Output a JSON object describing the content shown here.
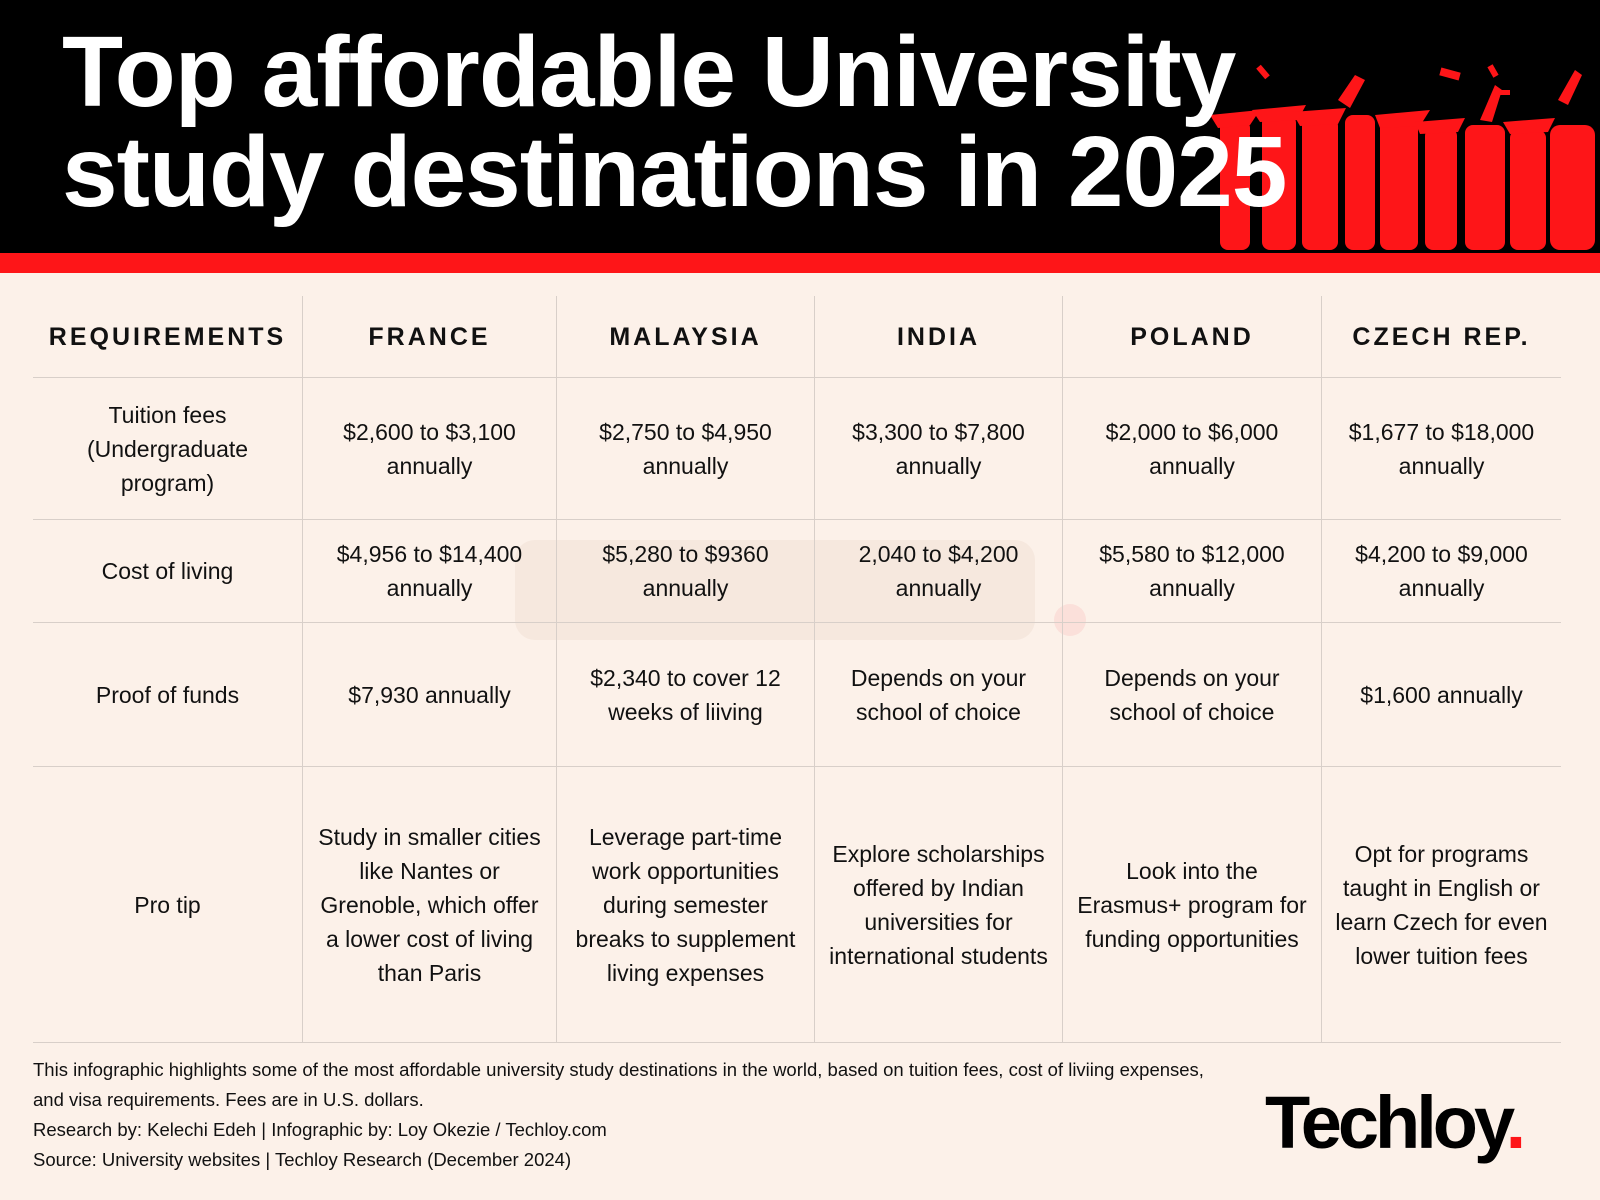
{
  "title": {
    "line1": "Top affordable University",
    "line2": "study destinations in 2025"
  },
  "colors": {
    "accent": "#fe1518",
    "header_bg": "#000000",
    "background": "#fcf1e9"
  },
  "header_image": "graduates-silhouette",
  "watermark": "Techloy.",
  "table": {
    "headers": [
      "REQUIREMENTS",
      "FRANCE",
      "MALAYSIA",
      "INDIA",
      "POLAND",
      "CZECH REP."
    ],
    "rows": [
      [
        "Tuition fees (Undergraduate program)",
        "$2,600 to $3,100 annually",
        "$2,750 to $4,950 annually",
        "$3,300 to $7,800 annually",
        "$2,000 to $6,000 annually",
        "$1,677 to $18,000 annually"
      ],
      [
        "Cost of living",
        "$4,956 to $14,400 annually",
        "$5,280 to $9360 annually",
        "2,040 to $4,200 annually",
        "$5,580 to $12,000 annually",
        "$4,200 to $9,000 annually"
      ],
      [
        "Proof of funds",
        "$7,930 annually",
        "$2,340 to cover 12 weeks of liiving",
        "Depends on your school of choice",
        "Depends on your school of choice",
        "$1,600 annually"
      ],
      [
        "Pro tip",
        "Study in smaller cities like Nantes or Grenoble, which offer a lower cost of living than Paris",
        "Leverage part-time work opportunities during semester breaks to supplement living expenses",
        "Explore scholarships offered by Indian universities for international students",
        "Look into the Erasmus+ program for funding opportunities",
        "Opt for programs taught in English or learn Czech for even lower tuition fees"
      ]
    ]
  },
  "footer": {
    "description": "This infographic highlights some of the most affordable university study destinations in the world, based on tuition fees, cost of liviing expenses, and visa requirements. Fees are in U.S. dollars.",
    "credits": "Research by: Kelechi Edeh | Infographic by: Loy Okezie / Techloy.com",
    "source": "Source: University websites | Techloy Research (December 2024)"
  },
  "logo": {
    "text": "Techloy",
    "dot": "."
  }
}
